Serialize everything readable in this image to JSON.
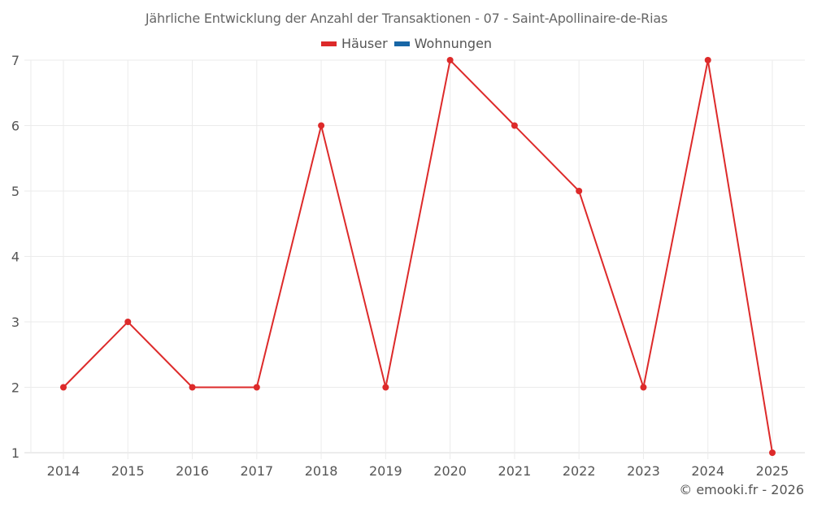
{
  "title": "Jährliche Entwicklung der Anzahl der Transaktionen - 07 - Saint-Apollinaire-de-Rias",
  "legend": [
    {
      "label": "Häuser",
      "color": "#dd2a2a"
    },
    {
      "label": "Wohnungen",
      "color": "#1866a6"
    }
  ],
  "footer": "© emooki.fr - 2026",
  "colors": {
    "line": "#dd2a2a",
    "grid": "#ebebeb",
    "axis": "#d9d9d9"
  },
  "chart_data": {
    "type": "line",
    "title": "Jährliche Entwicklung der Anzahl der Transaktionen - 07 - Saint-Apollinaire-de-Rias",
    "xlabel": "",
    "ylabel": "",
    "categories": [
      "2014",
      "2015",
      "2016",
      "2017",
      "2018",
      "2019",
      "2020",
      "2021",
      "2022",
      "2023",
      "2024",
      "2025"
    ],
    "series": [
      {
        "name": "Häuser",
        "color": "#dd2a2a",
        "values": [
          2,
          3,
          2,
          2,
          6,
          2,
          7,
          6,
          5,
          2,
          7,
          1
        ]
      },
      {
        "name": "Wohnungen",
        "color": "#1866a6",
        "values": []
      }
    ],
    "yticks": [
      1,
      2,
      3,
      4,
      5,
      6,
      7
    ],
    "ylim": [
      1,
      7
    ],
    "grid": true,
    "legend_position": "top"
  }
}
